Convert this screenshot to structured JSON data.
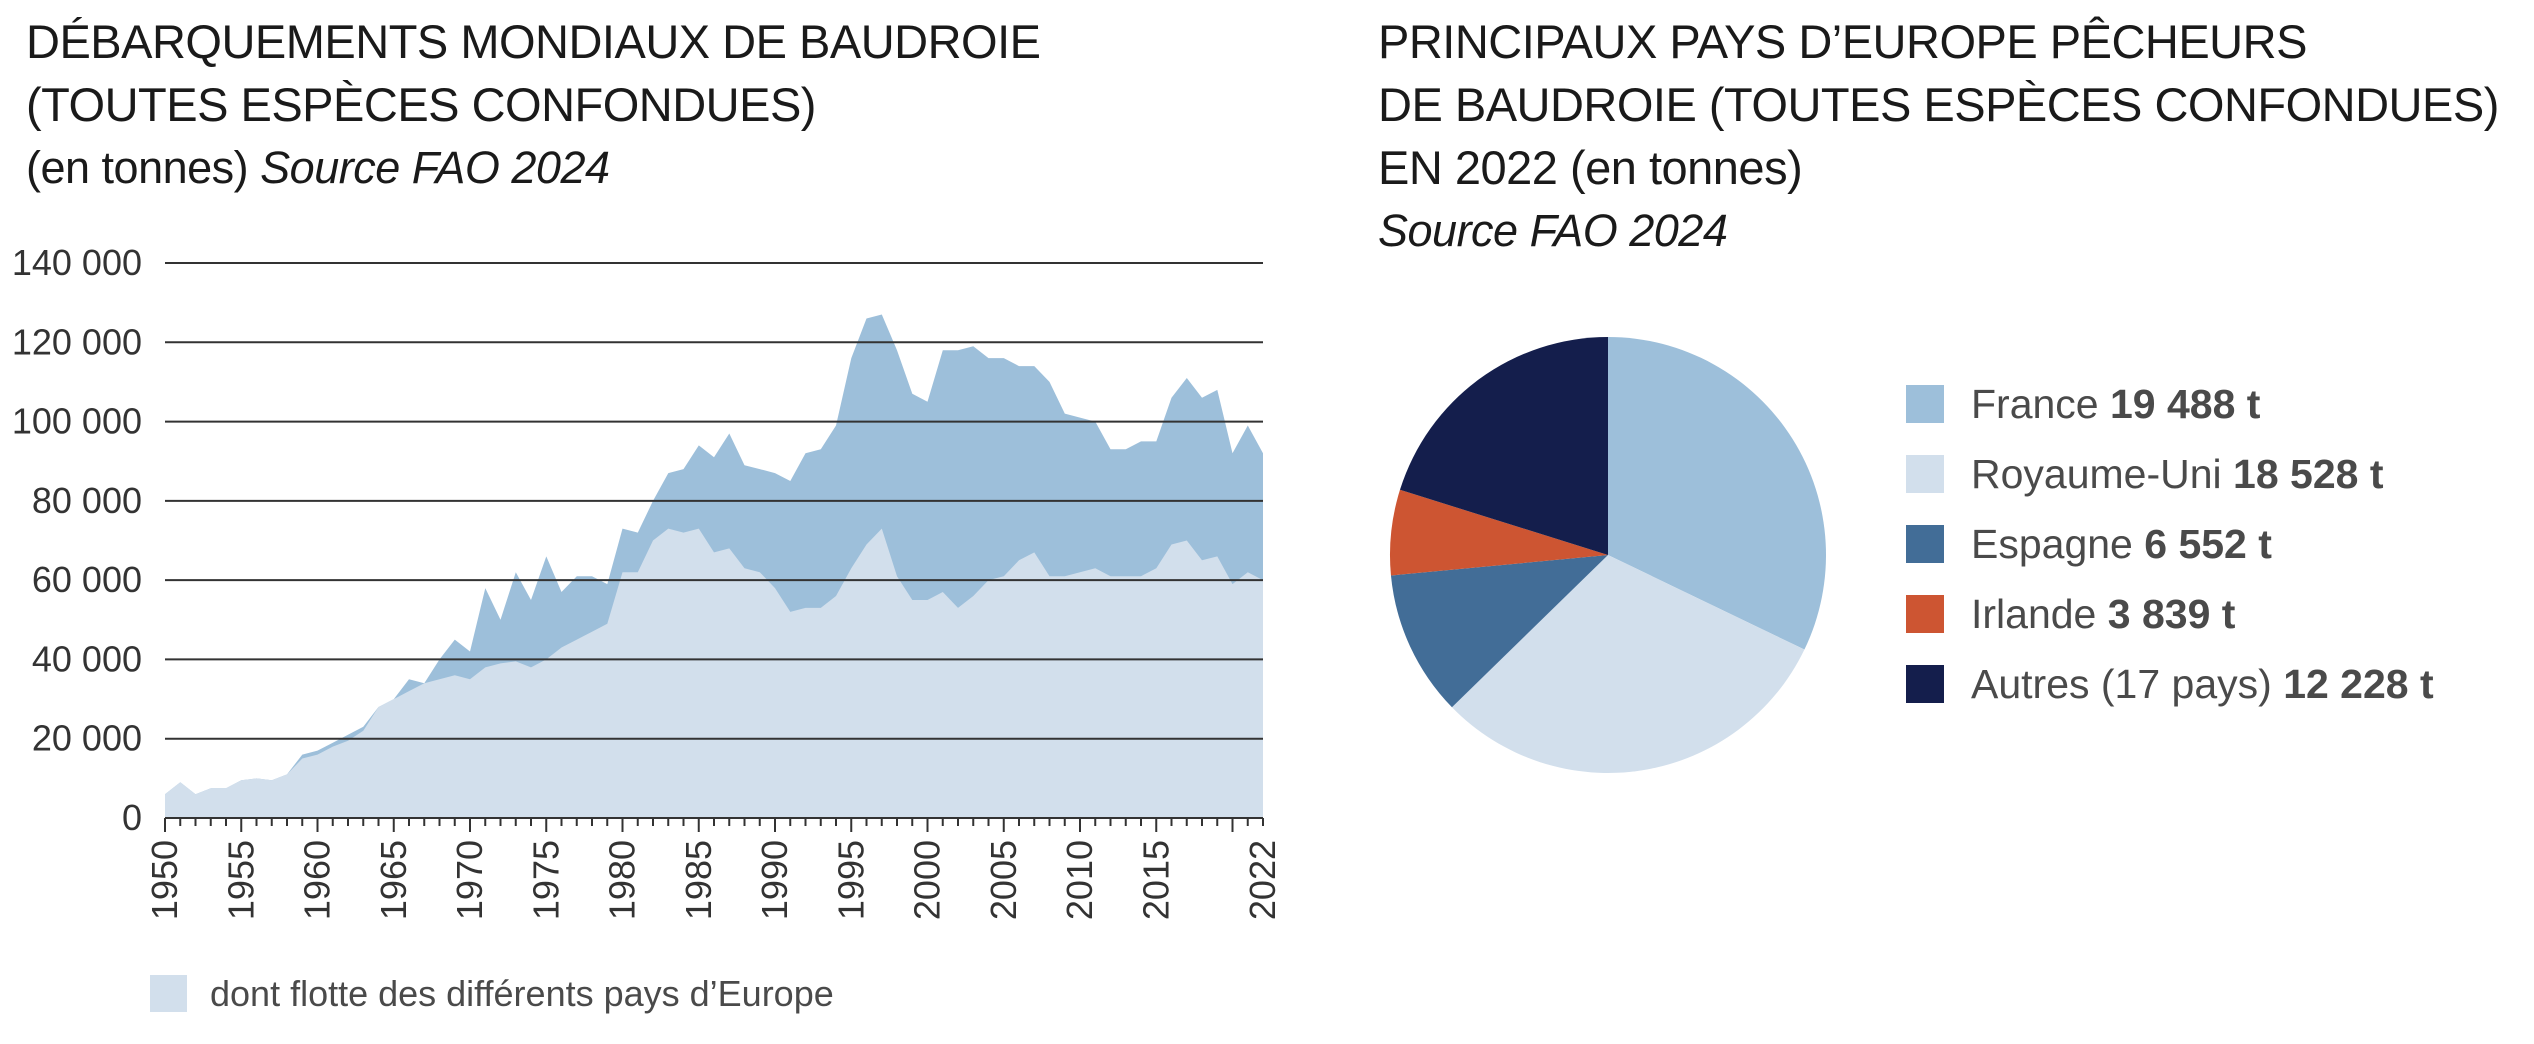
{
  "left_title": {
    "line1": "DÉBARQUEMENTS MONDIAUX DE BAUDROIE",
    "line2": "(TOUTES ESPÈCES CONFONDUES)",
    "unit": "(en tonnes)",
    "source": "Source FAO 2024"
  },
  "right_title": {
    "line1": "PRINCIPAUX PAYS D’EUROPE PÊCHEURS",
    "line2": "DE BAUDROIE (TOUTES ESPÈCES CONFONDUES)",
    "line3": "EN 2022 (en tonnes)",
    "source": "Source FAO 2024"
  },
  "colors": {
    "world": "#9dbfda",
    "europe": "#d2dfec",
    "france": "#9dbfda",
    "royaume_uni": "#d2dfec",
    "espagne": "#426d97",
    "irlande": "#cd5532",
    "autres": "#141e4c",
    "grid": "#333333"
  },
  "chart_data": [
    {
      "type": "area",
      "x": [
        1950,
        1951,
        1952,
        1953,
        1954,
        1955,
        1956,
        1957,
        1958,
        1959,
        1960,
        1961,
        1962,
        1963,
        1964,
        1965,
        1966,
        1967,
        1968,
        1969,
        1970,
        1971,
        1972,
        1973,
        1974,
        1975,
        1976,
        1977,
        1978,
        1979,
        1980,
        1981,
        1982,
        1983,
        1984,
        1985,
        1986,
        1987,
        1988,
        1989,
        1990,
        1991,
        1992,
        1993,
        1994,
        1995,
        1996,
        1997,
        1998,
        1999,
        2000,
        2001,
        2002,
        2003,
        2004,
        2005,
        2006,
        2007,
        2008,
        2009,
        2010,
        2011,
        2012,
        2013,
        2014,
        2015,
        2016,
        2017,
        2018,
        2019,
        2020,
        2021,
        2022
      ],
      "series": [
        {
          "key": "world",
          "values": [
            6000,
            9000,
            6000,
            7500,
            7500,
            9500,
            10000,
            9500,
            11000,
            16000,
            17000,
            19000,
            21000,
            23000,
            28000,
            30000,
            35000,
            34000,
            40000,
            45000,
            42000,
            58000,
            50000,
            62000,
            55000,
            66000,
            57000,
            61000,
            61000,
            59000,
            73000,
            72000,
            80000,
            87000,
            88000,
            94000,
            91000,
            97000,
            89000,
            88000,
            87000,
            85000,
            92000,
            93000,
            99000,
            116000,
            126000,
            127000,
            118000,
            107000,
            105000,
            118000,
            118000,
            119000,
            116000,
            116000,
            114000,
            114000,
            110000,
            102000,
            101000,
            100000,
            93000,
            93000,
            95000,
            95000,
            106000,
            111000,
            106000,
            108000,
            92000,
            99000,
            92000
          ]
        },
        {
          "key": "europe",
          "name": "dont flotte des différents pays d’Europe",
          "values": [
            6000,
            9000,
            6000,
            7500,
            7500,
            9500,
            10000,
            9500,
            11000,
            15000,
            16000,
            18000,
            19500,
            22000,
            28000,
            30000,
            32000,
            34000,
            35000,
            36000,
            35000,
            38000,
            39000,
            39500,
            38000,
            40000,
            43000,
            45000,
            47000,
            49000,
            62000,
            62000,
            70000,
            73000,
            72000,
            73000,
            67000,
            68000,
            63000,
            62000,
            58000,
            52000,
            53000,
            53000,
            56000,
            63000,
            69000,
            73000,
            61000,
            55000,
            55000,
            57000,
            53000,
            56000,
            60000,
            61000,
            65000,
            67000,
            61000,
            61000,
            62000,
            63000,
            61000,
            61000,
            61000,
            63000,
            69000,
            70000,
            65000,
            66000,
            59000,
            62000,
            60000
          ]
        }
      ],
      "ylim": [
        0,
        140000
      ],
      "yticks": [
        "0",
        "20 000",
        "40 000",
        "60 000",
        "80 000",
        "100 000",
        "120 000",
        "140 000"
      ],
      "xticks": [
        "1950",
        "1955",
        "1960",
        "1965",
        "1970",
        "1975",
        "1980",
        "1985",
        "1990",
        "1995",
        "2000",
        "2005",
        "2010",
        "2015",
        "2022"
      ],
      "grid": true,
      "legend_position": "bottom-left"
    },
    {
      "type": "pie",
      "slices": [
        {
          "key": "france",
          "label": "France",
          "value_label": "19 488 t",
          "value": 19488
        },
        {
          "key": "royaume_uni",
          "label": "Royaume-Uni",
          "value_label": "18 528 t",
          "value": 18528
        },
        {
          "key": "espagne",
          "label": "Espagne",
          "value_label": "6 552 t",
          "value": 6552
        },
        {
          "key": "irlande",
          "label": "Irlande",
          "value_label": "3 839 t",
          "value": 3839
        },
        {
          "key": "autres",
          "label": "Autres (17 pays)",
          "value_label": "12 228 t",
          "value": 12228
        }
      ],
      "legend_position": "right"
    }
  ]
}
